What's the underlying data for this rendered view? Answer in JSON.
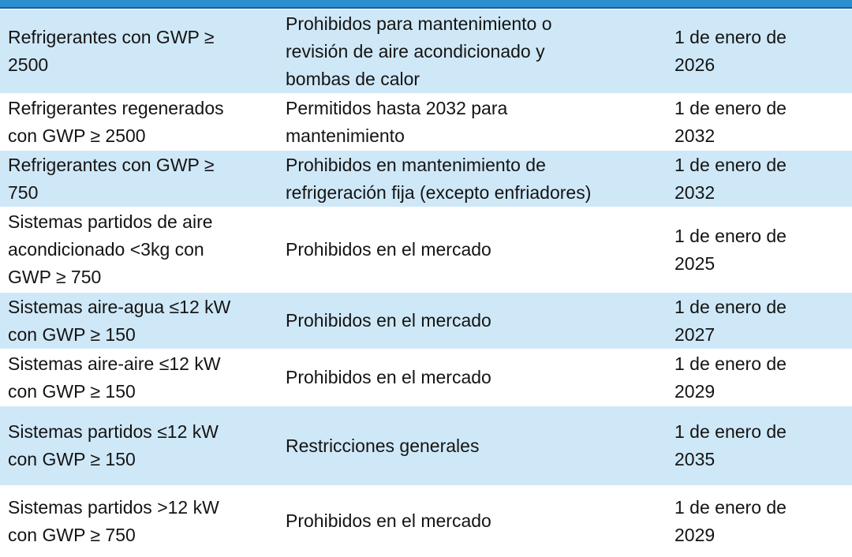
{
  "table": {
    "rows": [
      [
        [
          "Refrigerantes con GWP ≥",
          "2500"
        ],
        [
          "Prohibidos para mantenimiento o",
          "revisión de aire acondicionado y",
          "bombas de calor"
        ],
        [
          "1 de enero de",
          "2026"
        ]
      ],
      [
        [
          "Refrigerantes regenerados",
          "con GWP ≥ 2500"
        ],
        [
          "Permitidos hasta 2032 para",
          "mantenimiento"
        ],
        [
          "1 de enero de",
          "2032"
        ]
      ],
      [
        [
          "Refrigerantes con GWP ≥",
          "750"
        ],
        [
          "Prohibidos en mantenimiento de",
          "refrigeración fija (excepto enfriadores)"
        ],
        [
          "1 de enero de",
          "2032"
        ]
      ],
      [
        [
          "Sistemas partidos de aire",
          "acondicionado <3kg con",
          "GWP ≥ 750"
        ],
        [
          "Prohibidos en el mercado"
        ],
        [
          "1 de enero de",
          "2025"
        ]
      ],
      [
        [
          "Sistemas aire-agua ≤12 kW",
          "con GWP ≥ 150"
        ],
        [
          "Prohibidos en el mercado"
        ],
        [
          "1 de enero de",
          "2027"
        ]
      ],
      [
        [
          "Sistemas aire-aire ≤12 kW",
          "con GWP ≥ 150"
        ],
        [
          "Prohibidos en el mercado"
        ],
        [
          "1 de enero de",
          "2029"
        ]
      ],
      [
        [
          "Sistemas partidos ≤12 kW",
          "con GWP ≥ 150"
        ],
        [
          "Restricciones generales"
        ],
        [
          "1 de enero de",
          "2035"
        ]
      ],
      [
        [
          "Sistemas partidos >12 kW",
          "con GWP ≥ 750"
        ],
        [
          "Prohibidos en el mercado"
        ],
        [
          "1 de enero de",
          "2029"
        ]
      ]
    ]
  }
}
